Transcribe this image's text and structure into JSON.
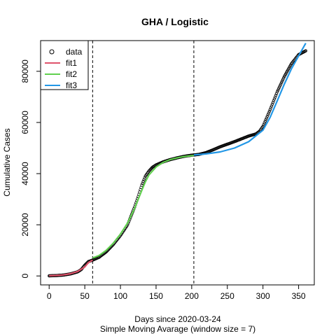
{
  "chart_data": {
    "type": "scatter",
    "title": "GHA / Logistic",
    "xlabel": "Days since 2020-03-24",
    "xlabel2": "Simple Moving Avarage (window size = 7)",
    "ylabel": "Cumulative Cases",
    "xlim": [
      -12,
      372
    ],
    "ylim": [
      -3500,
      92000
    ],
    "xticks": [
      0,
      50,
      100,
      150,
      200,
      250,
      300,
      350
    ],
    "yticks": [
      0,
      20000,
      40000,
      60000,
      80000
    ],
    "vlines": [
      61,
      203
    ],
    "legend": {
      "position": "top-left",
      "entries": [
        {
          "label": "data",
          "kind": "point",
          "color": "#000000"
        },
        {
          "label": "fit1",
          "kind": "line",
          "color": "#DF536B"
        },
        {
          "label": "fit2",
          "kind": "line",
          "color": "#61D04F"
        },
        {
          "label": "fit3",
          "kind": "line",
          "color": "#2297E6"
        }
      ]
    },
    "data_anchors": [
      [
        0,
        50
      ],
      [
        10,
        150
      ],
      [
        20,
        350
      ],
      [
        30,
        800
      ],
      [
        40,
        1600
      ],
      [
        45,
        2500
      ],
      [
        50,
        4200
      ],
      [
        55,
        5600
      ],
      [
        61,
        6200
      ],
      [
        70,
        7300
      ],
      [
        80,
        9400
      ],
      [
        90,
        12300
      ],
      [
        100,
        15800
      ],
      [
        110,
        20000
      ],
      [
        115,
        23500
      ],
      [
        120,
        27000
      ],
      [
        125,
        31000
      ],
      [
        130,
        35500
      ],
      [
        135,
        39000
      ],
      [
        140,
        41000
      ],
      [
        145,
        42500
      ],
      [
        150,
        43400
      ],
      [
        160,
        44600
      ],
      [
        170,
        45500
      ],
      [
        180,
        46200
      ],
      [
        190,
        46800
      ],
      [
        200,
        47200
      ],
      [
        210,
        47500
      ],
      [
        220,
        48200
      ],
      [
        230,
        49300
      ],
      [
        240,
        50500
      ],
      [
        250,
        51500
      ],
      [
        260,
        52500
      ],
      [
        270,
        53600
      ],
      [
        280,
        54700
      ],
      [
        290,
        55500
      ],
      [
        295,
        56500
      ],
      [
        300,
        58500
      ],
      [
        310,
        65000
      ],
      [
        320,
        72000
      ],
      [
        330,
        78000
      ],
      [
        340,
        83000
      ],
      [
        350,
        86500
      ],
      [
        360,
        88000
      ]
    ],
    "series": [
      {
        "name": "fit1",
        "color": "#DF536B",
        "values": [
          [
            0,
            80
          ],
          [
            10,
            200
          ],
          [
            20,
            420
          ],
          [
            30,
            880
          ],
          [
            40,
            1750
          ],
          [
            50,
            3500
          ],
          [
            55,
            5200
          ],
          [
            61,
            6200
          ]
        ]
      },
      {
        "name": "fit2",
        "color": "#61D04F",
        "values": [
          [
            61,
            7000
          ],
          [
            70,
            8000
          ],
          [
            80,
            10000
          ],
          [
            90,
            12800
          ],
          [
            100,
            16300
          ],
          [
            110,
            20700
          ],
          [
            120,
            26500
          ],
          [
            130,
            33500
          ],
          [
            135,
            36800
          ],
          [
            140,
            39500
          ],
          [
            150,
            42600
          ],
          [
            160,
            44400
          ],
          [
            170,
            45500
          ],
          [
            180,
            46200
          ],
          [
            190,
            46700
          ],
          [
            203,
            47100
          ]
        ]
      },
      {
        "name": "fit3",
        "color": "#2297E6",
        "values": [
          [
            203,
            47300
          ],
          [
            220,
            47700
          ],
          [
            240,
            48500
          ],
          [
            260,
            50000
          ],
          [
            280,
            52500
          ],
          [
            300,
            57000
          ],
          [
            310,
            62000
          ],
          [
            320,
            68500
          ],
          [
            330,
            75000
          ],
          [
            340,
            81000
          ],
          [
            350,
            86000
          ],
          [
            360,
            91000
          ]
        ]
      }
    ]
  }
}
